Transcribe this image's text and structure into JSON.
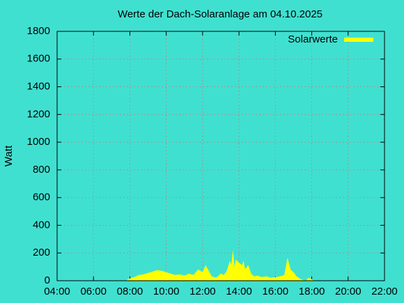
{
  "chart_data": {
    "type": "area",
    "title": "Werte der Dach-Solaranlage am 04.10.2025",
    "y_label": "Watt",
    "legend": "top-right",
    "grid": true,
    "x": [
      "07:50",
      "08:00",
      "08:15",
      "08:30",
      "08:45",
      "09:00",
      "09:15",
      "09:30",
      "09:45",
      "10:00",
      "10:15",
      "10:30",
      "10:45",
      "11:00",
      "11:15",
      "11:30",
      "11:45",
      "12:00",
      "12:10",
      "12:20",
      "12:30",
      "12:45",
      "13:00",
      "13:10",
      "13:20",
      "13:30",
      "13:35",
      "13:40",
      "13:45",
      "13:50",
      "14:00",
      "14:10",
      "14:15",
      "14:20",
      "14:30",
      "14:40",
      "14:50",
      "15:00",
      "15:15",
      "15:30",
      "15:45",
      "16:00",
      "16:15",
      "16:30",
      "16:40",
      "16:45",
      "16:50",
      "17:00",
      "17:10",
      "17:20",
      "17:30",
      "17:40",
      "17:50",
      "18:00",
      "18:05"
    ],
    "series": [
      {
        "name": "Solarwerte",
        "color": "#ffff00",
        "values": [
          5,
          15,
          25,
          40,
          45,
          55,
          65,
          75,
          70,
          60,
          50,
          40,
          45,
          35,
          50,
          40,
          80,
          60,
          110,
          70,
          30,
          20,
          50,
          40,
          70,
          140,
          110,
          210,
          90,
          150,
          130,
          110,
          140,
          80,
          110,
          50,
          30,
          35,
          25,
          30,
          20,
          25,
          30,
          40,
          160,
          120,
          80,
          60,
          30,
          15,
          5,
          0,
          20,
          10,
          0
        ]
      }
    ],
    "xlim": [
      "04:00",
      "22:00"
    ],
    "xticks": [
      "04:00",
      "06:00",
      "08:00",
      "10:00",
      "12:00",
      "14:00",
      "16:00",
      "18:00",
      "20:00",
      "22:00"
    ],
    "ylim": [
      0,
      1800
    ],
    "yticks": [
      0,
      200,
      400,
      600,
      800,
      1000,
      1200,
      1400,
      1600,
      1800
    ]
  }
}
